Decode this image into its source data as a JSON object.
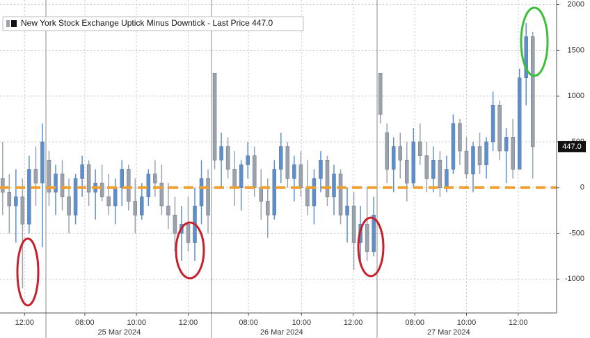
{
  "chart_data": {
    "type": "candlestick",
    "series": [
      {
        "name": "New York Stock Exchange Uptick Minus Downtick - Last Price 447.0",
        "up_color": "#5b8fd0",
        "down_color": "#9aa3ad",
        "open": [
          100,
          -50,
          -200,
          -100,
          -400,
          200,
          50,
          300,
          -50,
          150,
          -100,
          -300,
          100,
          250,
          -50,
          50,
          -100,
          -200,
          0,
          200,
          -150,
          -300,
          -100,
          150,
          50,
          -200,
          -300,
          -500,
          -400,
          -600,
          -200,
          100,
          1250,
          300,
          450,
          200,
          0,
          250,
          350,
          0,
          -150,
          -300,
          200,
          450,
          100,
          250,
          0,
          -200,
          100,
          300,
          -100,
          150,
          -300,
          -200,
          -600,
          -400,
          -700,
          1250,
          600,
          200,
          450,
          300,
          50,
          500,
          350,
          100,
          300,
          0,
          200,
          700,
          400,
          150,
          450,
          250,
          500,
          900,
          400,
          550,
          200,
          1200,
          1650
        ],
        "high": [
          500,
          150,
          200,
          100,
          350,
          450,
          700,
          400,
          250,
          300,
          100,
          150,
          350,
          300,
          200,
          250,
          150,
          100,
          300,
          250,
          100,
          50,
          200,
          300,
          250,
          50,
          -100,
          -200,
          -100,
          0,
          300,
          200,
          1250,
          600,
          550,
          400,
          300,
          500,
          450,
          200,
          100,
          300,
          600,
          500,
          350,
          400,
          300,
          200,
          400,
          350,
          250,
          200,
          0,
          -50,
          -200,
          0,
          -100,
          1250,
          700,
          550,
          600,
          500,
          650,
          700,
          500,
          450,
          400,
          350,
          800,
          750,
          550,
          500,
          600,
          550,
          1050,
          950,
          650,
          750,
          1300,
          1800,
          1700
        ],
        "low": [
          -300,
          -500,
          -600,
          -1100,
          -500,
          -200,
          -650,
          -200,
          -300,
          -250,
          -500,
          -400,
          -100,
          -200,
          -350,
          -150,
          -300,
          -400,
          -200,
          -250,
          -500,
          -350,
          -200,
          -100,
          -300,
          -450,
          -700,
          -800,
          -700,
          -800,
          -400,
          -500,
          200,
          0,
          100,
          -200,
          -250,
          100,
          -100,
          -350,
          -550,
          -350,
          50,
          0,
          -150,
          -100,
          -300,
          -400,
          -50,
          -200,
          -300,
          -400,
          -600,
          -900,
          -850,
          -800,
          -750,
          700,
          50,
          -50,
          100,
          -150,
          0,
          250,
          -50,
          -50,
          -100,
          -50,
          150,
          250,
          100,
          -50,
          150,
          100,
          400,
          300,
          50,
          100,
          200,
          900,
          100
        ],
        "close": [
          -50,
          -200,
          -100,
          -400,
          200,
          50,
          500,
          -50,
          150,
          -100,
          -300,
          100,
          250,
          -50,
          50,
          -100,
          -200,
          0,
          200,
          -150,
          -300,
          -100,
          150,
          50,
          -200,
          -300,
          -500,
          -400,
          -600,
          -200,
          100,
          -300,
          300,
          450,
          200,
          0,
          250,
          350,
          0,
          -150,
          -300,
          200,
          450,
          100,
          250,
          0,
          -200,
          100,
          300,
          -100,
          150,
          -300,
          -200,
          -600,
          -400,
          -700,
          -300,
          800,
          200,
          450,
          300,
          50,
          500,
          350,
          100,
          300,
          0,
          200,
          700,
          400,
          150,
          450,
          250,
          500,
          900,
          400,
          550,
          200,
          1200,
          1650,
          447
        ]
      }
    ],
    "xlim": [
      -0.4,
      83.6
    ],
    "ylim": [
      -1370,
      2050
    ],
    "yticks": [
      2000,
      1500,
      1000,
      500,
      0,
      -500,
      -1000
    ],
    "xticks": [
      {
        "value": 3.3,
        "label": "12:00"
      },
      {
        "value": 12.4,
        "label": "08:00"
      },
      {
        "value": 20.2,
        "label": "10:00"
      },
      {
        "value": 28.0,
        "label": "12:00"
      },
      {
        "value": 37.1,
        "label": "08:00"
      },
      {
        "value": 45.1,
        "label": "10:00"
      },
      {
        "value": 52.9,
        "label": "12:00"
      },
      {
        "value": 62.2,
        "label": "08:00"
      },
      {
        "value": 70.0,
        "label": "10:00"
      },
      {
        "value": 77.8,
        "label": "12:00"
      }
    ],
    "date_ticks": [
      {
        "value": 17.6,
        "label": "25 Mar 2024"
      },
      {
        "value": 42.1,
        "label": "26 Mar 2024"
      },
      {
        "value": 67.3,
        "label": "27 Mar 2024"
      }
    ],
    "reference_line": {
      "value": 0,
      "color": "#f0a030"
    },
    "last_price": {
      "value": 447,
      "label": "447.0"
    },
    "grid": true
  }
}
